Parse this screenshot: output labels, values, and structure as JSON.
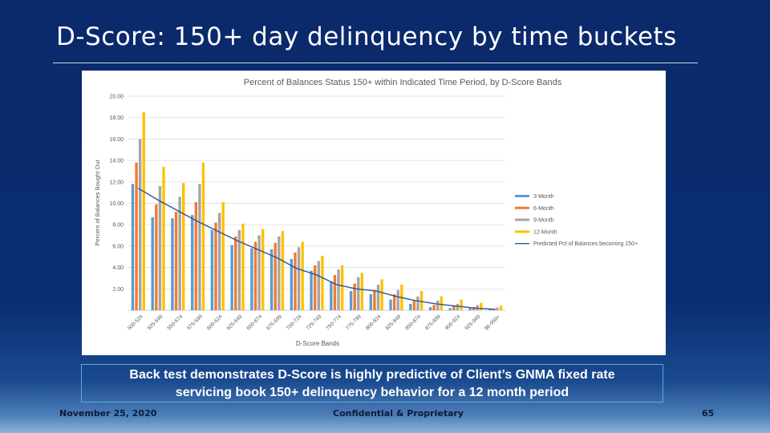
{
  "slide": {
    "title": "D-Score:  150+ day delinquency by time buckets",
    "callout_line1": "Back test demonstrates D-Score is highly predictive of Client’s GNMA fixed rate",
    "callout_line2": "servicing book 150+ delinquency behavior for a 12 month period",
    "footer_date": "November 25, 2020",
    "footer_confidential": "Confidential & Proprietary",
    "page_number": "65"
  },
  "chart_data": {
    "type": "bar",
    "title": "Percent of Balances Status 150+ within Indicated Time Period, by D-Score Bands",
    "xlabel": "D-Score Bands",
    "ylabel": "Percent of Balances Bought Out",
    "ylim": [
      0,
      20
    ],
    "yticks": [
      "20.00",
      "18.00",
      "16.00",
      "14.00",
      "12.00",
      "10.00",
      "8.00",
      "6.00",
      "4.00",
      "2.00"
    ],
    "grid": true,
    "legend_position": "right",
    "categories": [
      "500-524",
      "525-549",
      "550-574",
      "575-599",
      "600-624",
      "625-649",
      "650-674",
      "675-699",
      "700-724",
      "725-749",
      "750-774",
      "775-799",
      "800-824",
      "825-849",
      "850-874",
      "875-899",
      "900-924",
      "925-949",
      "(blank)950+"
    ],
    "category_labels": [
      "500-524",
      "525-549",
      "550-574",
      "575-599",
      "600-624",
      "625-649",
      "650-674",
      "675-699",
      "700-724",
      "725-749",
      "750-774",
      "775-799",
      "800-824",
      "825-849",
      "850-874",
      "875-899",
      "900-924",
      "925-949",
      "$6-950+"
    ],
    "series": [
      {
        "name": "3-Month",
        "color": "#5b9bd5",
        "values": [
          11.8,
          8.7,
          8.6,
          8.9,
          7.5,
          6.1,
          5.8,
          5.7,
          4.8,
          3.7,
          2.7,
          1.8,
          1.5,
          1.0,
          0.6,
          0.3,
          0.2,
          0.2,
          0.1
        ]
      },
      {
        "name": "6-Month",
        "color": "#ed7d31",
        "values": [
          13.8,
          9.9,
          9.2,
          10.1,
          8.2,
          6.9,
          6.4,
          6.3,
          5.4,
          4.2,
          3.3,
          2.5,
          1.9,
          1.5,
          0.9,
          0.5,
          0.4,
          0.3,
          0.15
        ]
      },
      {
        "name": "9-Month",
        "color": "#a5a5a5",
        "values": [
          16.0,
          11.6,
          10.6,
          11.8,
          9.1,
          7.5,
          7.0,
          6.9,
          5.9,
          4.6,
          3.8,
          3.1,
          2.4,
          1.9,
          1.3,
          0.9,
          0.6,
          0.5,
          0.25
        ]
      },
      {
        "name": "12-Month",
        "color": "#ffc000",
        "values": [
          18.5,
          13.4,
          11.9,
          13.8,
          10.1,
          8.1,
          7.6,
          7.4,
          6.4,
          5.1,
          4.2,
          3.5,
          2.9,
          2.4,
          1.8,
          1.3,
          1.0,
          0.7,
          0.45
        ]
      }
    ],
    "line_series": {
      "name": "Predicted Pct of Balances becoming 150+",
      "color": "#2e5597",
      "values": [
        11.4,
        10.3,
        9.3,
        8.3,
        7.4,
        6.5,
        5.7,
        4.9,
        3.9,
        3.3,
        2.4,
        2.0,
        1.8,
        1.3,
        0.9,
        0.6,
        0.4,
        0.2,
        0.1
      ]
    }
  }
}
